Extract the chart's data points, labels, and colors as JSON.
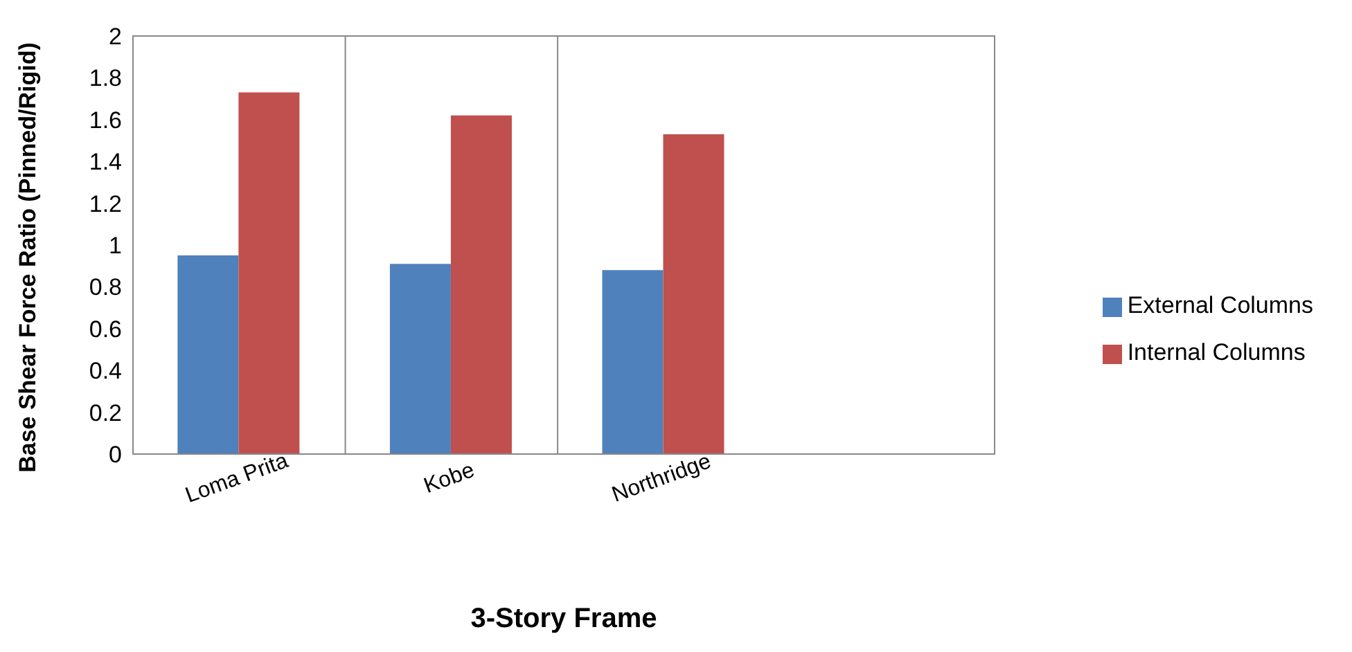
{
  "chart_data": {
    "type": "bar",
    "xlabel": "3-Story Frame",
    "ylabel": "Base Shear Force Ratio (Pinned/Rigid)",
    "categories": [
      "Loma Prita",
      "Kobe",
      "Northridge"
    ],
    "series": [
      {
        "name": "External Columns",
        "color": "#4f81bd",
        "values": [
          0.95,
          0.91,
          0.88
        ]
      },
      {
        "name": "Internal Columns",
        "color": "#c0504d",
        "values": [
          1.73,
          1.62,
          1.53
        ]
      }
    ],
    "ylim": [
      0,
      2
    ],
    "yticks": [
      0,
      0.2,
      0.4,
      0.6,
      0.8,
      1,
      1.2,
      1.4,
      1.6,
      1.8,
      2
    ],
    "grid": "x",
    "legend": "right"
  }
}
